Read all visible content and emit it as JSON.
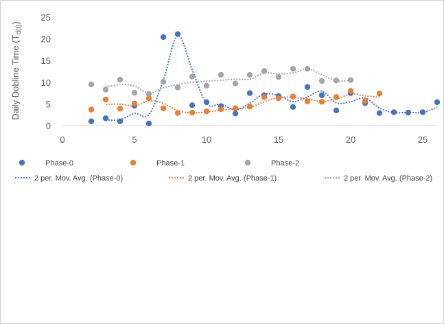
{
  "chart_data": {
    "type": "scatter",
    "ylabel": "Daily Dobline Time (T",
    "ylabel_sub": "d(t)",
    "ylabel_close": ")",
    "xlim": [
      0,
      26
    ],
    "ylim": [
      0,
      25
    ],
    "xticks": [
      0,
      5,
      10,
      15,
      20,
      25
    ],
    "yticks": [
      0,
      5,
      10,
      15,
      20,
      25
    ],
    "grid": false,
    "legend_position": "bottom",
    "series": [
      {
        "name": "Phase-0",
        "color": "#4472C4",
        "points": [
          [
            2,
            1.0
          ],
          [
            3,
            1.7
          ],
          [
            4,
            1.0
          ],
          [
            5,
            4.6
          ],
          [
            6,
            0.5
          ],
          [
            7,
            20.4
          ],
          [
            8,
            21.1
          ],
          [
            9,
            4.7
          ],
          [
            10,
            5.4
          ],
          [
            11,
            4.5
          ],
          [
            12,
            2.8
          ],
          [
            13,
            7.5
          ],
          [
            14,
            7.0
          ],
          [
            15,
            6.8
          ],
          [
            16,
            4.3
          ],
          [
            17,
            8.9
          ],
          [
            18,
            7.0
          ],
          [
            19,
            3.5
          ],
          [
            20,
            7.5
          ],
          [
            21,
            5.2
          ],
          [
            22,
            2.9
          ],
          [
            23,
            3.1
          ],
          [
            24,
            3.0
          ],
          [
            25,
            3.1
          ],
          [
            26,
            5.4
          ]
        ]
      },
      {
        "name": "Phase-1",
        "color": "#ED7D31",
        "points": [
          [
            2,
            3.7
          ],
          [
            3,
            6.0
          ],
          [
            4,
            3.9
          ],
          [
            5,
            5.1
          ],
          [
            6,
            6.3
          ],
          [
            7,
            4.0
          ],
          [
            8,
            2.9
          ],
          [
            9,
            3.0
          ],
          [
            10,
            3.3
          ],
          [
            11,
            3.8
          ],
          [
            12,
            4.0
          ],
          [
            13,
            4.4
          ],
          [
            14,
            6.6
          ],
          [
            15,
            6.3
          ],
          [
            16,
            6.7
          ],
          [
            17,
            5.6
          ],
          [
            18,
            5.5
          ],
          [
            19,
            6.6
          ],
          [
            20,
            8.0
          ],
          [
            21,
            5.7
          ],
          [
            22,
            7.4
          ]
        ]
      },
      {
        "name": "Phase-2",
        "color": "#A5A5A5",
        "points": [
          [
            2,
            9.5
          ],
          [
            3,
            8.3
          ],
          [
            4,
            10.6
          ],
          [
            5,
            7.6
          ],
          [
            6,
            7.3
          ],
          [
            7,
            10.1
          ],
          [
            8,
            8.8
          ],
          [
            9,
            11.3
          ],
          [
            10,
            9.2
          ],
          [
            11,
            11.7
          ],
          [
            12,
            9.7
          ],
          [
            13,
            11.7
          ],
          [
            14,
            12.6
          ],
          [
            15,
            11.2
          ],
          [
            16,
            13.1
          ],
          [
            17,
            13.1
          ],
          [
            18,
            10.3
          ],
          [
            19,
            10.4
          ],
          [
            20,
            10.5
          ]
        ]
      }
    ],
    "moving_average": [
      {
        "name": "2 per. Mov. Avg. (Phase-0)",
        "color": "#4472C4",
        "period": 2,
        "series_index": 0
      },
      {
        "name": "2 per. Mov. Avg. (Phase-1)",
        "color": "#ED7D31",
        "period": 2,
        "series_index": 1
      },
      {
        "name": "2 per. Mov. Avg. (Phase-2)",
        "color": "#A5A5A5",
        "period": 2,
        "series_index": 2
      }
    ]
  },
  "legend": {
    "markers": [
      "Phase-0",
      "Phase-1",
      "Phase-2"
    ],
    "lines": [
      "2 per. Mov. Avg. (Phase-0)",
      "2 per. Mov. Avg. (Phase-1)",
      "2 per. Mov. Avg. (Phase-2)"
    ]
  }
}
